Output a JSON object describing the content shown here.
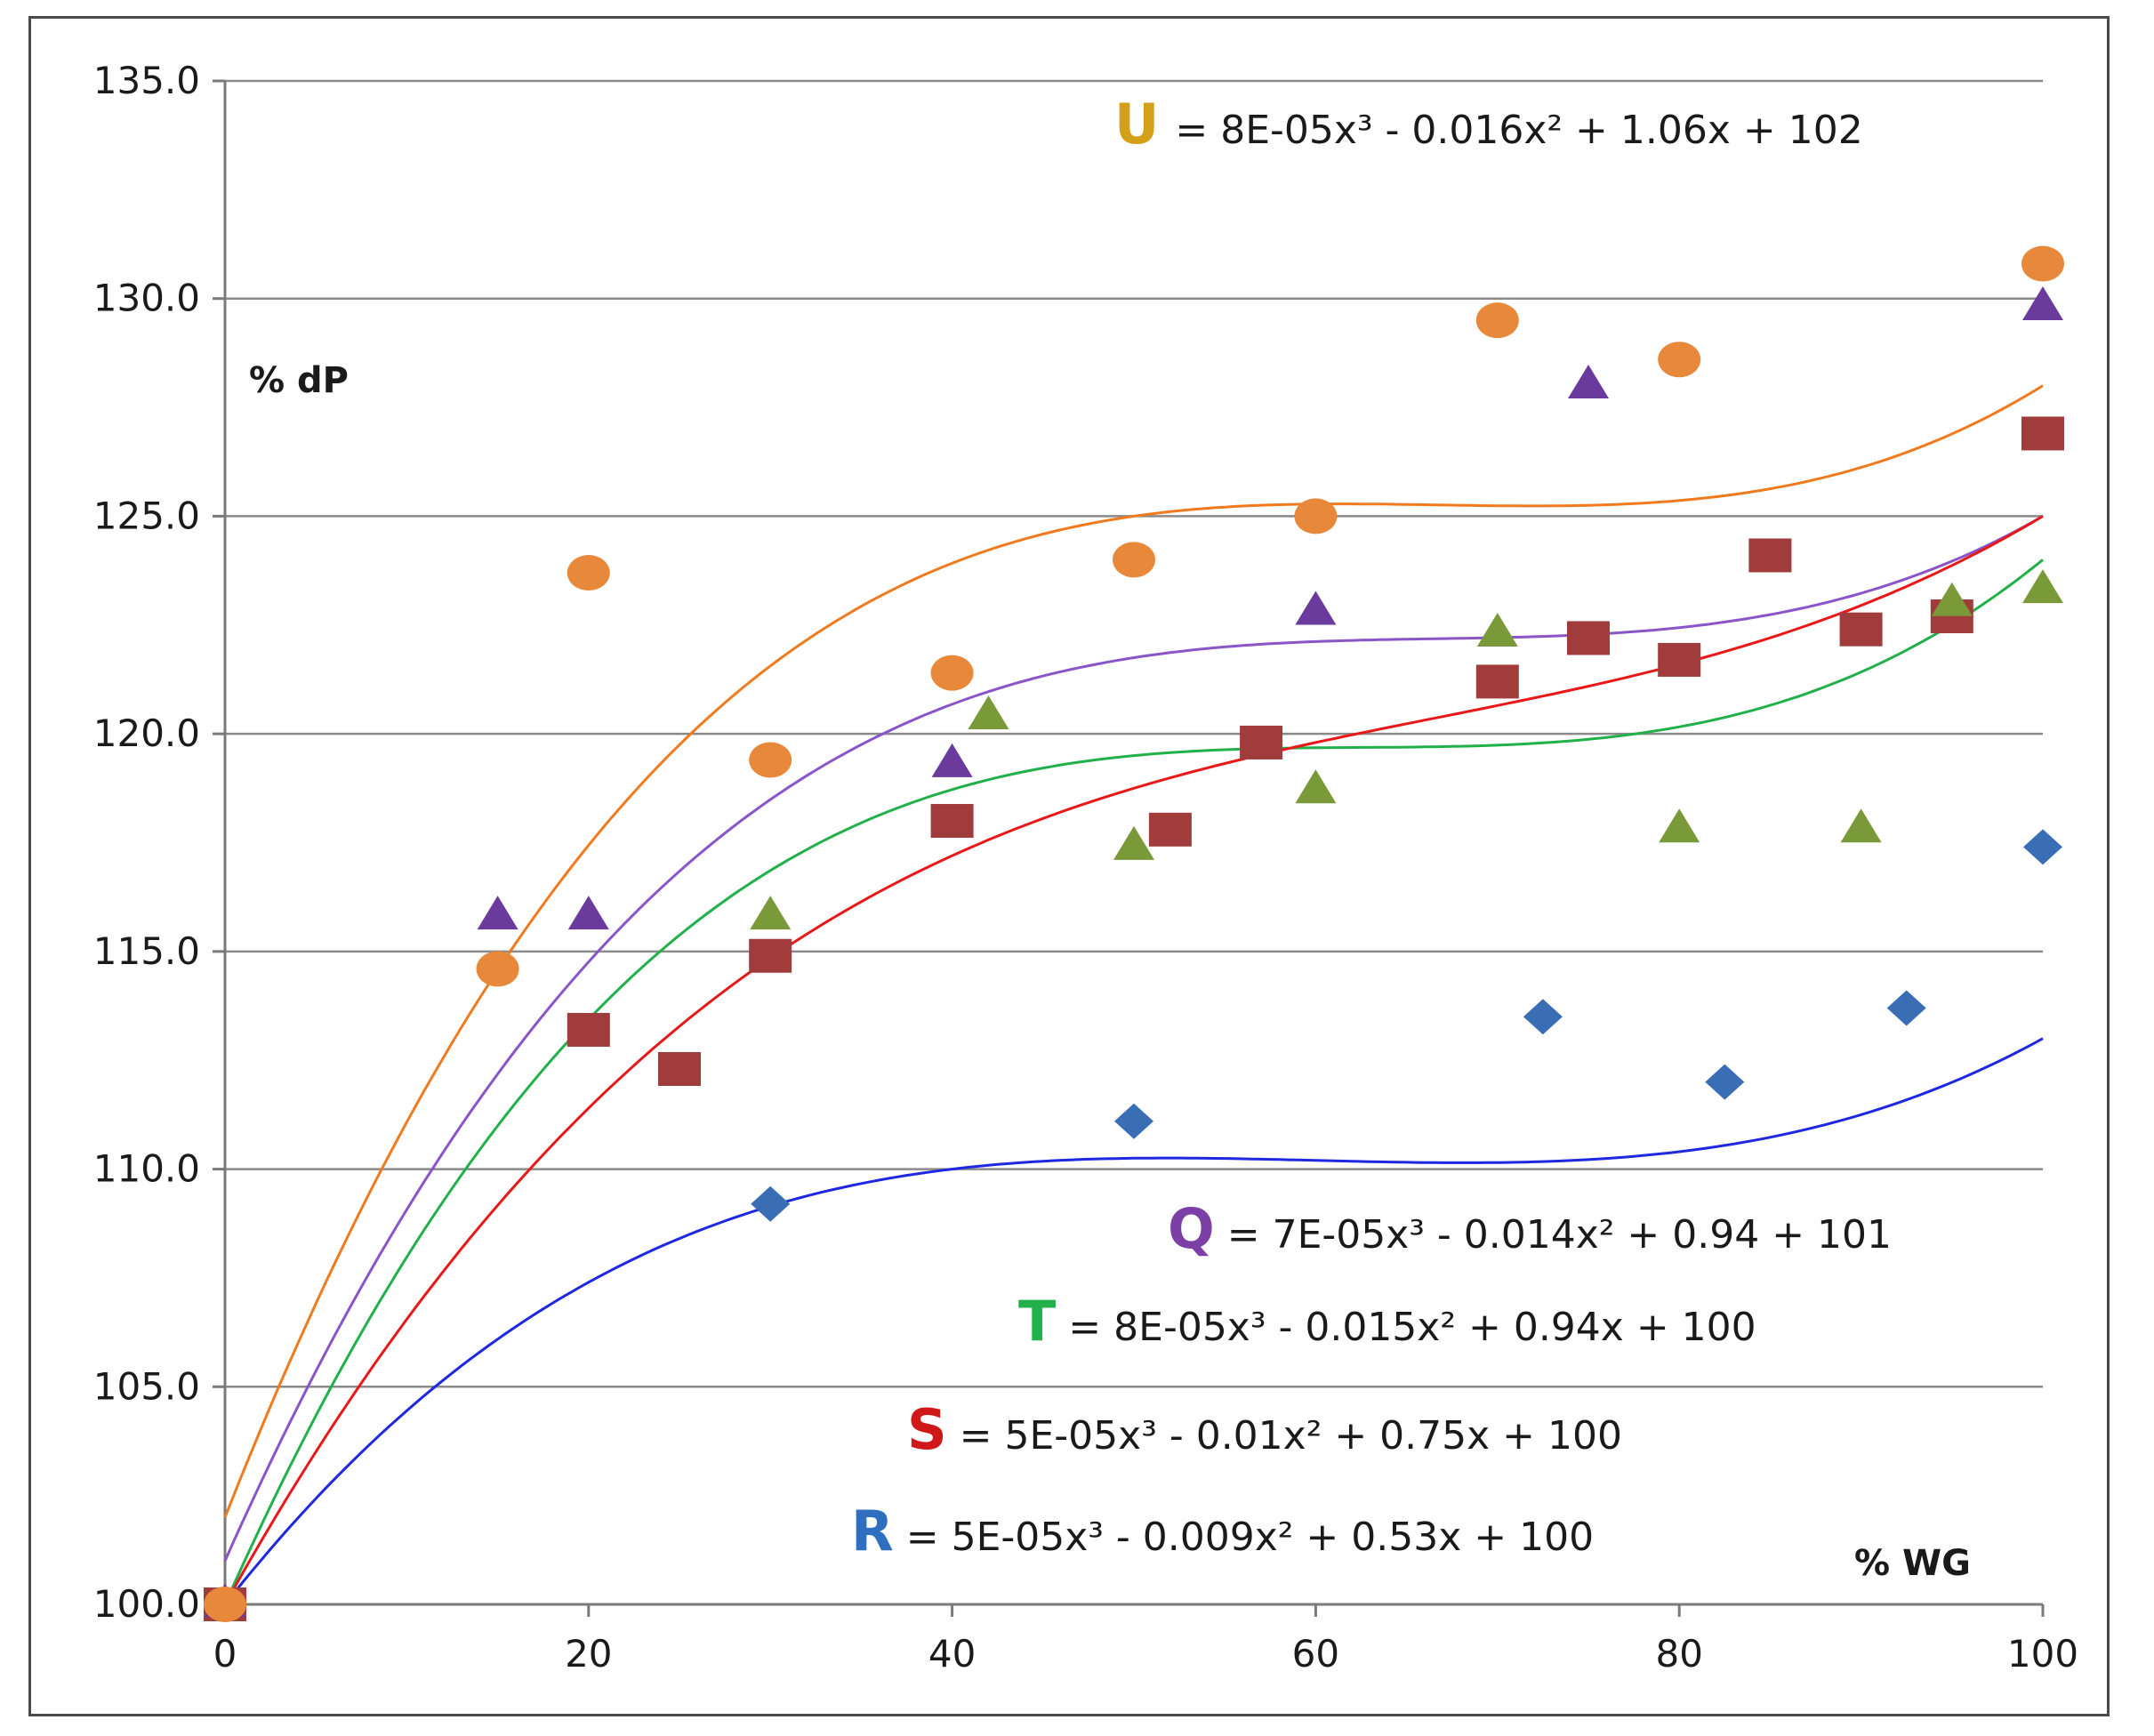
{
  "chart_data": {
    "type": "scatter",
    "title": "",
    "xlabel": "% WG",
    "ylabel": "% dP",
    "xlim": [
      0,
      100
    ],
    "ylim": [
      100,
      135
    ],
    "x_ticks": [
      "0",
      "20",
      "40",
      "60",
      "80",
      "100"
    ],
    "y_ticks": [
      "100.0",
      "105.0",
      "110.0",
      "115.0",
      "120.0",
      "125.0",
      "130.0",
      "135.0"
    ],
    "grid": "horizontal",
    "series": [
      {
        "name": "U",
        "marker": "circle",
        "color": "#E8883A",
        "line_color": "#F07A1E",
        "equation": "= 8E-05x³ - 0.016x² + 1.06x + 102",
        "coeffs": [
          8e-05,
          -0.016,
          1.06,
          102
        ],
        "curve_x": [
          0,
          100
        ],
        "points": [
          [
            0,
            100.0
          ],
          [
            15,
            114.6
          ],
          [
            20,
            123.7
          ],
          [
            30,
            119.4
          ],
          [
            40,
            121.4
          ],
          [
            50,
            124.0
          ],
          [
            60,
            125.0
          ],
          [
            70,
            129.5
          ],
          [
            80,
            128.6
          ],
          [
            100,
            130.8
          ]
        ]
      },
      {
        "name": "Q",
        "marker": "triangle",
        "color": "#6A3A9C",
        "line_color": "#8A55C8",
        "equation": "= 7E-05x³ - 0.014x² + 0.94 + 101",
        "coeffs": [
          7e-05,
          -0.014,
          0.94,
          101
        ],
        "curve_x": [
          0,
          100
        ],
        "points": [
          [
            0,
            100.0
          ],
          [
            15,
            115.8
          ],
          [
            20,
            115.8
          ],
          [
            40,
            119.3
          ],
          [
            60,
            122.8
          ],
          [
            75,
            128.0
          ],
          [
            100,
            129.8
          ]
        ]
      },
      {
        "name": "T",
        "marker": "triangle",
        "color": "#7A9A3A",
        "line_color": "#22B04A",
        "equation": "= 8E-05x³ - 0.015x² + 0.94x + 100",
        "coeffs": [
          8e-05,
          -0.015,
          0.94,
          100
        ],
        "curve_x": [
          0,
          100
        ],
        "points": [
          [
            0,
            100.0
          ],
          [
            30,
            115.8
          ],
          [
            42,
            120.4
          ],
          [
            50,
            117.4
          ],
          [
            60,
            118.7
          ],
          [
            70,
            122.3
          ],
          [
            80,
            117.8
          ],
          [
            90,
            117.8
          ],
          [
            95,
            123.0
          ],
          [
            100,
            123.3
          ]
        ]
      },
      {
        "name": "S",
        "marker": "square",
        "color": "#A03C3C",
        "line_color": "#E81818",
        "equation": "= 5E-05x³ - 0.01x² + 0.75x + 100",
        "coeffs": [
          5e-05,
          -0.01,
          0.75,
          100
        ],
        "curve_x": [
          0,
          100
        ],
        "points": [
          [
            0,
            100.0
          ],
          [
            20,
            113.2
          ],
          [
            25,
            112.3
          ],
          [
            30,
            114.9
          ],
          [
            40,
            118.0
          ],
          [
            52,
            117.8
          ],
          [
            57,
            119.8
          ],
          [
            70,
            121.2
          ],
          [
            75,
            122.2
          ],
          [
            80,
            121.7
          ],
          [
            85,
            124.1
          ],
          [
            90,
            122.4
          ],
          [
            95,
            122.7
          ],
          [
            100,
            126.9
          ]
        ]
      },
      {
        "name": "R",
        "marker": "diamond",
        "color": "#3A6EB4",
        "line_color": "#1E28E0",
        "equation": "= 5E-05x³ - 0.009x² + 0.53x + 100",
        "coeffs": [
          5e-05,
          -0.009,
          0.53,
          100
        ],
        "curve_x": [
          0,
          100
        ],
        "points": [
          [
            0,
            100.0
          ],
          [
            30,
            109.2
          ],
          [
            50,
            111.1
          ],
          [
            72.5,
            113.5
          ],
          [
            82.5,
            112.0
          ],
          [
            92.5,
            113.7
          ],
          [
            100,
            117.4
          ]
        ]
      }
    ]
  }
}
